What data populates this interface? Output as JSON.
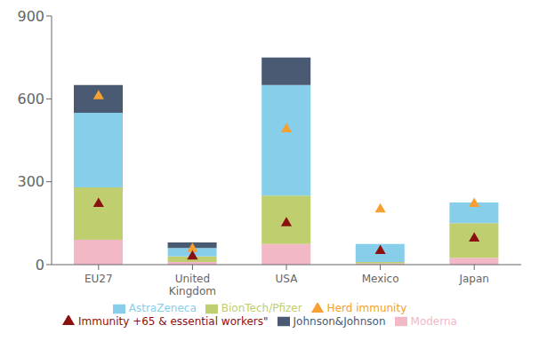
{
  "chart_data": {
    "type": "bar",
    "stacked": true,
    "grid": false,
    "legend": "bottom",
    "categories": [
      "EU27",
      "United\nKingdom",
      "USA",
      "Mexico",
      "Japan"
    ],
    "series": [
      {
        "name": "Moderna",
        "type": "bar",
        "color": "#f2b8c6",
        "values": [
          90,
          10,
          75,
          5,
          25
        ]
      },
      {
        "name": "BionTech/Pfizer",
        "type": "bar",
        "color": "#bfce6e",
        "values": [
          190,
          20,
          175,
          5,
          125
        ]
      },
      {
        "name": "AstraZeneca",
        "type": "bar",
        "color": "#87ceeb",
        "values": [
          270,
          30,
          400,
          65,
          75
        ]
      },
      {
        "name": "Johnson&Johnson",
        "type": "bar",
        "color": "#4a5a72",
        "values": [
          100,
          20,
          100,
          0,
          0
        ]
      },
      {
        "name": "Herd immunity",
        "type": "scatter",
        "marker": "triangle",
        "color": "#f5a030",
        "values": [
          610,
          57,
          490,
          200,
          220
        ]
      },
      {
        "name": "Immunity +65 & essential workers\"",
        "type": "scatter",
        "marker": "triangle",
        "color": "#8b1010",
        "values": [
          220,
          30,
          150,
          50,
          95
        ]
      }
    ],
    "ylim": [
      0,
      900
    ],
    "yticks": [
      0,
      300,
      600,
      900
    ]
  }
}
